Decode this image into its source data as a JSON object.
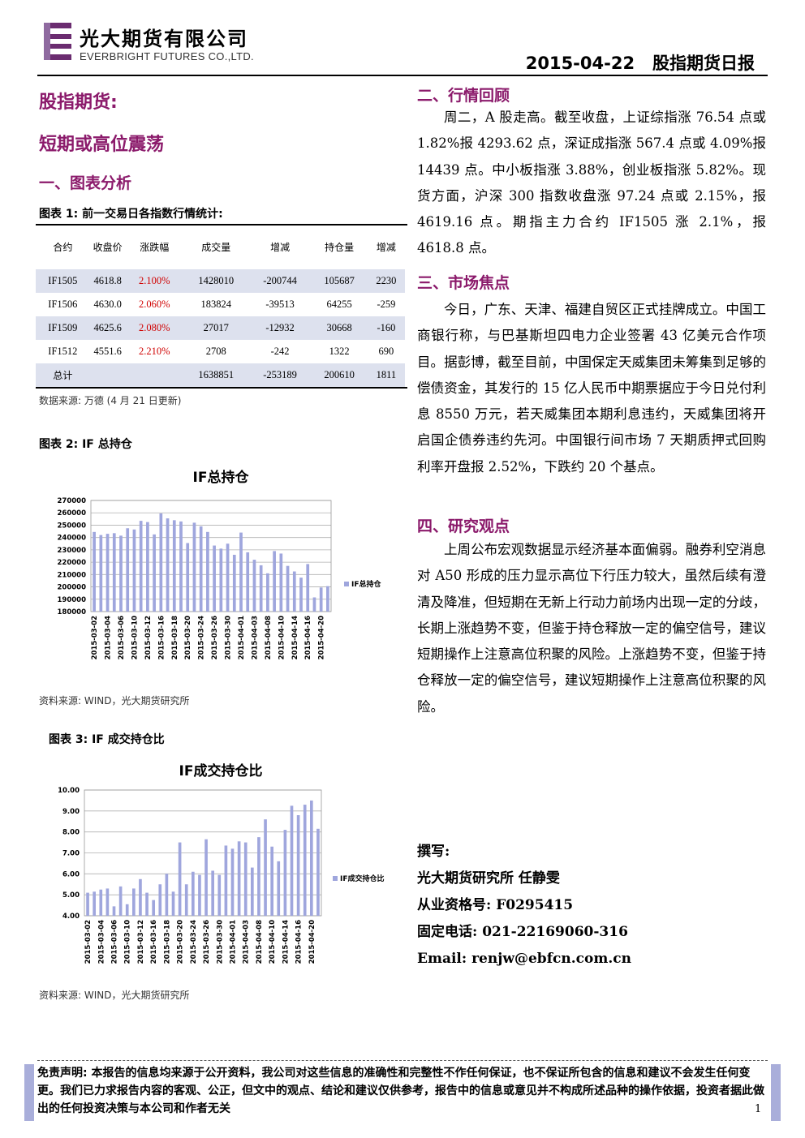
{
  "header": {
    "company_cn": "光大期货有限公司",
    "company_en": "EVERBRIGHT FUTURES CO.,LTD.",
    "date": "2015-04-22",
    "report_name": "股指期货日报"
  },
  "left": {
    "title": "股指期货:",
    "subtitle": "短期或高位震荡",
    "section1": "一、图表分析",
    "table_caption": "图表 1:  前一交易日各指数行情统计:",
    "table": {
      "headers": [
        "合约",
        "收盘价",
        "涨跌幅",
        "成交量",
        "增减",
        "持仓量",
        "增减"
      ],
      "rows": [
        [
          "IF1505",
          "4618.8",
          "2.100%",
          "1428010",
          "-200744",
          "105687",
          "2230"
        ],
        [
          "IF1506",
          "4630.0",
          "2.060%",
          "183824",
          "-39513",
          "64255",
          "-259"
        ],
        [
          "IF1509",
          "4625.6",
          "2.080%",
          "27017",
          "-12932",
          "30668",
          "-160"
        ],
        [
          "IF1512",
          "4551.6",
          "2.210%",
          "2708",
          "-242",
          "1322",
          "690"
        ]
      ],
      "total": [
        "总计",
        "",
        "",
        "1638851",
        "-253189",
        "200610",
        "1811"
      ]
    },
    "table_source": "数据来源: 万德 (4 月 21 日更新)",
    "chart2_caption": "图表 2: IF 总持仓",
    "chart2_source": "资料来源: WIND，光大期货研究所",
    "chart3_caption": "图表 3:  IF 成交持仓比",
    "chart3_source": "资料来源: WIND，光大期货研究所"
  },
  "right": {
    "section2": "二、行情回顾",
    "review": "周二，A 股走高。截至收盘，上证综指涨 76.54 点或 1.82%报 4293.62 点，深证成指涨 567.4 点或 4.09%报 14439 点。中小板指涨 3.88%，创业板指涨 5.82%。现货方面，沪深 300 指数收盘涨 97.24 点或 2.15%，报 4619.16 点。期指主力合约 IF1505 涨 2.1%，报 4618.8 点。",
    "section3": "三、市场焦点",
    "focus": "今日，广东、天津、福建自贸区正式挂牌成立。中国工商银行称，与巴基斯坦四电力企业签署 43 亿美元合作项目。据彭博，截至目前，中国保定天威集团未筹集到足够的偿债资金，其发行的 15 亿人民币中期票据应于今日兑付利息 8550 万元，若天威集团本期利息违约，天威集团将开启国企债券违约先河。中国银行间市场 7 天期质押式回购利率开盘报 2.52%，下跌约 20 个基点。",
    "section4": "四、研究观点",
    "view": "上周公布宏观数据显示经济基本面偏弱。融券利空消息对 A50 形成的压力显示高位下行压力较大，虽然后续有澄清及降准，但短期在无新上行动力前场内出现一定的分歧，长期上涨趋势不变，但鉴于持仓释放一定的偏空信号，建议短期操作上注意高位积聚的风险。上涨趋势不变，但鉴于持仓释放一定的偏空信号，建议短期操作上注意高位积聚的风险。",
    "author_label": "撰写:",
    "author": "光大期货研究所  任静雯",
    "license": "从业资格号:  F0295415",
    "phone": "固定电话:  021-22169060-316",
    "email_label": "Email:",
    "email": "renjw@ebfcn.com.cn"
  },
  "footer": {
    "disclaimer": "免责声明: 本报告的信息均来源于公开资料，我公司对这些信息的准确性和完整性不作任何保证，也不保证所包含的信息和建议不会发生任何变更。我们已力求报告内容的客观、公正，但文中的观点、结论和建议仅供参考，报告中的信息或意见并不构成所述品种的操作依据，投资者据此做出的任何投资决策与本公司和作者无关",
    "page": "1"
  },
  "colors": {
    "accent": "#8b1a6b",
    "bar": "#9fa6dd",
    "table_shade": "#dde1ee",
    "red": "#d00000"
  },
  "chart_data": [
    {
      "type": "bar",
      "title": "IF总持仓",
      "series": [
        {
          "name": "IF总持仓",
          "values": [
            244500,
            242000,
            243000,
            243500,
            241500,
            247500,
            246500,
            253500,
            252500,
            242500,
            259500,
            255500,
            254000,
            253000,
            235500,
            252000,
            249000,
            244500,
            233500,
            231000,
            235000,
            226000,
            244000,
            228000,
            222000,
            217500,
            211000,
            229000,
            227000,
            217000,
            212500,
            207500,
            218500,
            191500,
            199500,
            200610
          ]
        }
      ],
      "dates": [
        "2015-03-02",
        "2015-03-03",
        "2015-03-04",
        "2015-03-05",
        "2015-03-06",
        "2015-03-09",
        "2015-03-10",
        "2015-03-11",
        "2015-03-12",
        "2015-03-13",
        "2015-03-16",
        "2015-03-17",
        "2015-03-18",
        "2015-03-19",
        "2015-03-20",
        "2015-03-23",
        "2015-03-24",
        "2015-03-25",
        "2015-03-26",
        "2015-03-27",
        "2015-03-30",
        "2015-03-31",
        "2015-04-01",
        "2015-04-02",
        "2015-04-03",
        "2015-04-07",
        "2015-04-08",
        "2015-04-09",
        "2015-04-10",
        "2015-04-13",
        "2015-04-14",
        "2015-04-15",
        "2015-04-16",
        "2015-04-17",
        "2015-04-20",
        "2015-04-21"
      ],
      "tick_labels": [
        "2015-03-02",
        "2015-03-04",
        "2015-03-06",
        "2015-03-10",
        "2015-03-12",
        "2015-03-16",
        "2015-03-18",
        "2015-03-20",
        "2015-03-24",
        "2015-03-26",
        "2015-03-30",
        "2015-04-01",
        "2015-04-03",
        "2015-04-08",
        "2015-04-10",
        "2015-04-14",
        "2015-04-16",
        "2015-04-20"
      ],
      "ylim": [
        180000,
        270000
      ],
      "yticks": [
        "270000",
        "260000",
        "250000",
        "240000",
        "230000",
        "220000",
        "210000",
        "200000",
        "190000",
        "180000"
      ],
      "legend": "right",
      "grid": true
    },
    {
      "type": "bar",
      "title": "IF成交持仓比",
      "series": [
        {
          "name": "IF成交持仓比",
          "values": [
            5.1,
            5.15,
            5.25,
            5.3,
            4.45,
            5.4,
            4.55,
            5.3,
            5.75,
            5.1,
            4.75,
            5.5,
            6.0,
            5.15,
            7.5,
            5.5,
            6.1,
            5.95,
            7.65,
            6.15,
            5.95,
            7.35,
            7.2,
            7.55,
            7.5,
            6.3,
            7.75,
            8.6,
            7.3,
            6.6,
            8.1,
            9.25,
            8.8,
            9.3,
            9.5,
            8.15
          ]
        }
      ],
      "dates": [
        "2015-03-02",
        "2015-03-03",
        "2015-03-04",
        "2015-03-05",
        "2015-03-06",
        "2015-03-09",
        "2015-03-10",
        "2015-03-11",
        "2015-03-12",
        "2015-03-13",
        "2015-03-16",
        "2015-03-17",
        "2015-03-18",
        "2015-03-19",
        "2015-03-20",
        "2015-03-23",
        "2015-03-24",
        "2015-03-25",
        "2015-03-26",
        "2015-03-27",
        "2015-03-30",
        "2015-03-31",
        "2015-04-01",
        "2015-04-02",
        "2015-04-03",
        "2015-04-07",
        "2015-04-08",
        "2015-04-09",
        "2015-04-10",
        "2015-04-13",
        "2015-04-14",
        "2015-04-15",
        "2015-04-16",
        "2015-04-17",
        "2015-04-20",
        "2015-04-21"
      ],
      "tick_labels": [
        "2015-03-02",
        "2015-03-04",
        "2015-03-06",
        "2015-03-10",
        "2015-03-12",
        "2015-03-16",
        "2015-03-18",
        "2015-03-20",
        "2015-03-24",
        "2015-03-26",
        "2015-03-30",
        "2015-04-01",
        "2015-04-03",
        "2015-04-08",
        "2015-04-10",
        "2015-04-14",
        "2015-04-16",
        "2015-04-20"
      ],
      "ylim": [
        4.0,
        10.0
      ],
      "yticks": [
        "10.00",
        "9.00",
        "8.00",
        "7.00",
        "6.00",
        "5.00",
        "4.00"
      ],
      "legend": "right",
      "grid": true
    }
  ]
}
